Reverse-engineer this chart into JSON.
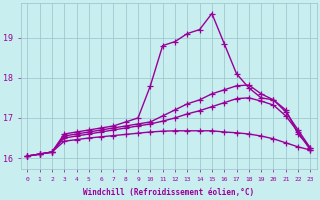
{
  "xlabel": "Windchill (Refroidissement éolien,°C)",
  "bg_color": "#c8eef0",
  "grid_color": "#a0c8d0",
  "line_color": "#990099",
  "line_width": 1.0,
  "marker": "+",
  "markersize": 4,
  "xlim": [
    -0.5,
    23.5
  ],
  "ylim": [
    15.72,
    19.85
  ],
  "xticks": [
    0,
    1,
    2,
    3,
    4,
    5,
    6,
    7,
    8,
    9,
    10,
    11,
    12,
    13,
    14,
    15,
    16,
    17,
    18,
    19,
    20,
    21,
    22,
    23
  ],
  "yticks": [
    16,
    17,
    18,
    19
  ],
  "series": [
    [
      16.05,
      16.1,
      16.15,
      16.6,
      16.65,
      16.7,
      16.75,
      16.8,
      16.9,
      17.0,
      17.8,
      18.8,
      18.9,
      19.1,
      19.2,
      19.6,
      18.85,
      18.1,
      17.75,
      17.5,
      17.45,
      17.2,
      16.6,
      16.25
    ],
    [
      16.05,
      16.1,
      16.15,
      16.55,
      16.6,
      16.65,
      16.7,
      16.75,
      16.8,
      16.85,
      16.9,
      17.05,
      17.2,
      17.35,
      17.45,
      17.6,
      17.7,
      17.8,
      17.82,
      17.6,
      17.45,
      17.15,
      16.7,
      16.25
    ],
    [
      16.05,
      16.1,
      16.15,
      16.5,
      16.55,
      16.6,
      16.65,
      16.7,
      16.75,
      16.8,
      16.85,
      16.92,
      17.0,
      17.1,
      17.18,
      17.28,
      17.38,
      17.48,
      17.5,
      17.42,
      17.32,
      17.05,
      16.65,
      16.2
    ],
    [
      16.05,
      16.1,
      16.15,
      16.42,
      16.46,
      16.5,
      16.53,
      16.56,
      16.59,
      16.62,
      16.65,
      16.67,
      16.68,
      16.68,
      16.68,
      16.68,
      16.65,
      16.63,
      16.6,
      16.55,
      16.48,
      16.38,
      16.28,
      16.2
    ]
  ]
}
